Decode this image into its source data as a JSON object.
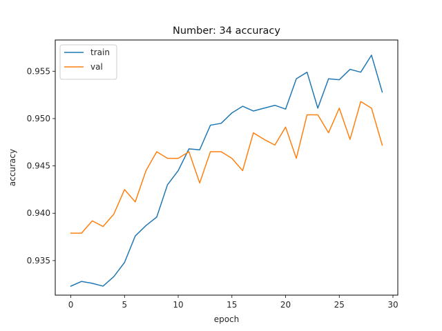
{
  "chart_data": {
    "type": "line",
    "title": "Number: 34 accuracy",
    "xlabel": "epoch",
    "ylabel": "accuracy",
    "xlim": [
      -1.45,
      30.45
    ],
    "ylim": [
      0.93135,
      0.9583
    ],
    "xticks": [
      0,
      5,
      10,
      15,
      20,
      25,
      30
    ],
    "yticks": [
      0.935,
      0.94,
      0.945,
      0.95,
      0.955
    ],
    "ytick_labels": [
      "0.935",
      "0.940",
      "0.945",
      "0.950",
      "0.955"
    ],
    "grid": false,
    "legend_position": "upper-left",
    "x": [
      0,
      1,
      2,
      3,
      4,
      5,
      6,
      7,
      8,
      9,
      10,
      11,
      12,
      13,
      14,
      15,
      16,
      17,
      18,
      19,
      20,
      21,
      22,
      23,
      24,
      25,
      26,
      27,
      28,
      29
    ],
    "series": [
      {
        "name": "train",
        "color": "#1f77b4",
        "values": [
          0.9323,
          0.9328,
          0.9326,
          0.9323,
          0.9333,
          0.9348,
          0.9376,
          0.9387,
          0.9396,
          0.943,
          0.9445,
          0.9468,
          0.9467,
          0.9493,
          0.9495,
          0.9506,
          0.9513,
          0.9508,
          0.9511,
          0.9514,
          0.951,
          0.9542,
          0.9549,
          0.9511,
          0.9542,
          0.9541,
          0.9552,
          0.9549,
          0.9567,
          0.9528
        ]
      },
      {
        "name": "val",
        "color": "#ff7f0e",
        "values": [
          0.9379,
          0.9379,
          0.9392,
          0.9386,
          0.9399,
          0.9425,
          0.9412,
          0.9445,
          0.9465,
          0.9458,
          0.9458,
          0.9465,
          0.9432,
          0.9465,
          0.9465,
          0.9458,
          0.9445,
          0.9485,
          0.9478,
          0.9472,
          0.9491,
          0.9458,
          0.9504,
          0.9504,
          0.9485,
          0.9511,
          0.9478,
          0.9518,
          0.9511,
          0.9472
        ]
      }
    ]
  }
}
